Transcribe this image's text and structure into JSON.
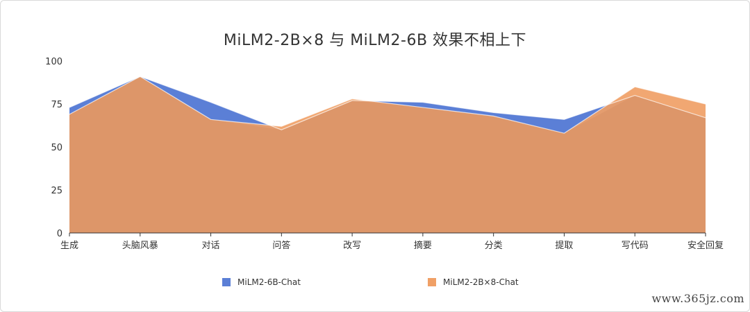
{
  "chart_data": {
    "type": "area",
    "title": "MiLM2-2B×8 与 MiLM2-6B 效果不相上下",
    "categories": [
      "生成",
      "头脑风暴",
      "对话",
      "问答",
      "改写",
      "摘要",
      "分类",
      "提取",
      "写代码",
      "安全回复"
    ],
    "y_ticks": [
      "0",
      "25",
      "50",
      "75",
      "100"
    ],
    "ylim": [
      0,
      100
    ],
    "series": [
      {
        "name": "MiLM2-6B-Chat",
        "color": "#5b7fd6",
        "values": [
          73,
          91,
          76,
          60,
          77,
          76,
          70,
          66,
          80,
          67
        ]
      },
      {
        "name": "MiLM2-2B×8-Chat",
        "color": "#f0a066",
        "values": [
          69,
          91,
          66,
          62,
          78,
          73,
          68,
          58,
          85,
          75
        ]
      }
    ],
    "overlap_color": "#dd9669",
    "legend_position": "bottom",
    "grid": false
  },
  "watermark": "www.365jz.com"
}
